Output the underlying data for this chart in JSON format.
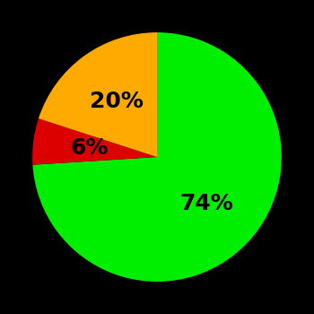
{
  "slices": [
    74,
    6,
    20
  ],
  "colors": [
    "#00ee00",
    "#dd0000",
    "#ffaa00"
  ],
  "labels": [
    "74%",
    "6%",
    "20%"
  ],
  "label_colors": [
    "black",
    "black",
    "black"
  ],
  "background_color": "#000000",
  "startangle": 90,
  "figsize": [
    3.5,
    3.5
  ],
  "dpi": 100,
  "label_fontsize": 18,
  "label_fontweight": "bold",
  "label_radii": [
    0.55,
    0.55,
    0.55
  ]
}
